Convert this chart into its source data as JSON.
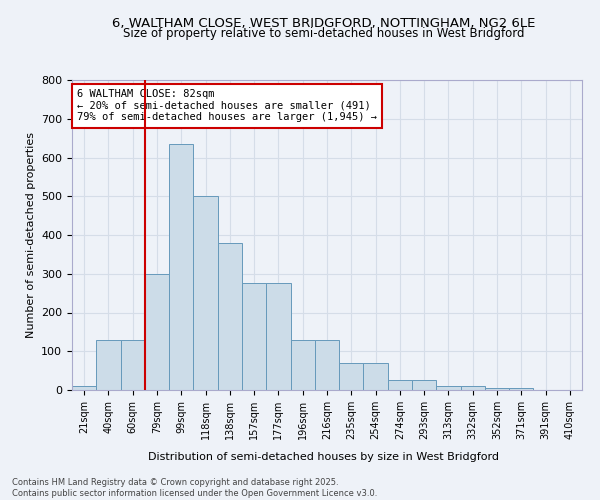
{
  "title1": "6, WALTHAM CLOSE, WEST BRIDGFORD, NOTTINGHAM, NG2 6LE",
  "title2": "Size of property relative to semi-detached houses in West Bridgford",
  "xlabel": "Distribution of semi-detached houses by size in West Bridgford",
  "ylabel": "Number of semi-detached properties",
  "footer1": "Contains HM Land Registry data © Crown copyright and database right 2025.",
  "footer2": "Contains public sector information licensed under the Open Government Licence v3.0.",
  "bar_labels": [
    "21sqm",
    "40sqm",
    "60sqm",
    "79sqm",
    "99sqm",
    "118sqm",
    "138sqm",
    "157sqm",
    "177sqm",
    "196sqm",
    "216sqm",
    "235sqm",
    "254sqm",
    "274sqm",
    "293sqm",
    "313sqm",
    "332sqm",
    "352sqm",
    "371sqm",
    "391sqm",
    "410sqm"
  ],
  "bar_values": [
    10,
    130,
    130,
    300,
    635,
    500,
    380,
    275,
    275,
    130,
    130,
    70,
    70,
    25,
    25,
    10,
    10,
    5,
    5,
    0,
    0
  ],
  "bar_color": "#ccdce8",
  "bar_edgecolor": "#6699bb",
  "grid_color": "#d5dde8",
  "vline_x": 3.0,
  "vline_color": "#cc0000",
  "annotation_text": "6 WALTHAM CLOSE: 82sqm\n← 20% of semi-detached houses are smaller (491)\n79% of semi-detached houses are larger (1,945) →",
  "annotation_box_edgecolor": "#cc0000",
  "annotation_box_facecolor": "#ffffff",
  "ylim": [
    0,
    800
  ],
  "yticks": [
    0,
    100,
    200,
    300,
    400,
    500,
    600,
    700,
    800
  ],
  "bg_color": "#eef2f8"
}
